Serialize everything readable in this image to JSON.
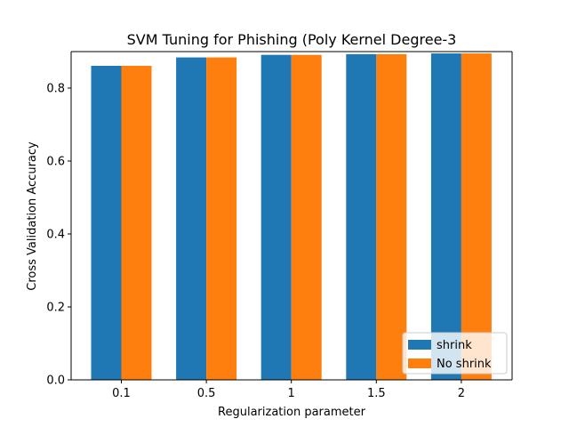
{
  "chart_data": {
    "type": "bar",
    "title": "SVM Tuning for Phishing (Poly Kernel Degree-3",
    "xlabel": "Regularization parameter",
    "ylabel": "Cross Validation Accuracy",
    "categories": [
      "0.1",
      "0.5",
      "1",
      "1.5",
      "2"
    ],
    "ylim": [
      0,
      0.9
    ],
    "yticks": [
      "0.0",
      "0.2",
      "0.4",
      "0.6",
      "0.8"
    ],
    "grid": false,
    "legend_position": "lower-right",
    "series": [
      {
        "name": "shrink",
        "color": "#1f77b4",
        "values": [
          0.861,
          0.884,
          0.891,
          0.893,
          0.895
        ]
      },
      {
        "name": "No shrink",
        "color": "#ff7f0e",
        "values": [
          0.861,
          0.884,
          0.891,
          0.893,
          0.895
        ]
      }
    ]
  }
}
